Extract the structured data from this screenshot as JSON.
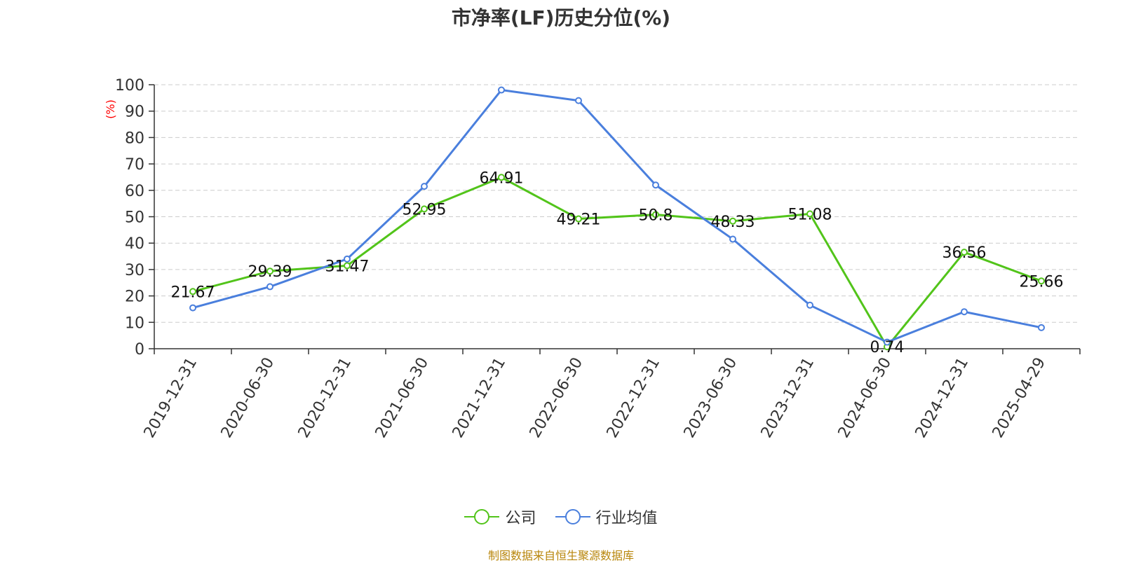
{
  "title": "市净率(LF)历史分位(%)",
  "source_note": "制图数据来自恒生聚源数据库",
  "colors": {
    "company": "#52c41a",
    "industry": "#4a7fdd",
    "unit": "#ff0000",
    "axis": "#333333",
    "grid": "#cccccc"
  },
  "chart_data": {
    "type": "line",
    "title": "市净率(LF)历史分位(%)",
    "ylabel": "(%)",
    "ylim": [
      0,
      100
    ],
    "yticks": [
      0,
      10,
      20,
      30,
      40,
      50,
      60,
      70,
      80,
      90,
      100
    ],
    "grid": true,
    "legend_position": "bottom",
    "categories": [
      "2019-12-31",
      "2020-06-30",
      "2020-12-31",
      "2021-06-30",
      "2021-12-31",
      "2022-06-30",
      "2022-12-31",
      "2023-06-30",
      "2023-12-31",
      "2024-06-30",
      "2024-12-31",
      "2025-04-29"
    ],
    "series": [
      {
        "name": "公司",
        "color": "#52c41a",
        "show_labels": true,
        "values": [
          21.67,
          29.39,
          31.47,
          52.95,
          64.91,
          49.21,
          50.8,
          48.33,
          51.08,
          0.74,
          36.56,
          25.66
        ]
      },
      {
        "name": "行业均值",
        "color": "#4a7fdd",
        "show_labels": false,
        "values": [
          15.5,
          23.5,
          34,
          61.5,
          98,
          94,
          62,
          41.5,
          16.5,
          2.5,
          14,
          8
        ]
      }
    ]
  }
}
